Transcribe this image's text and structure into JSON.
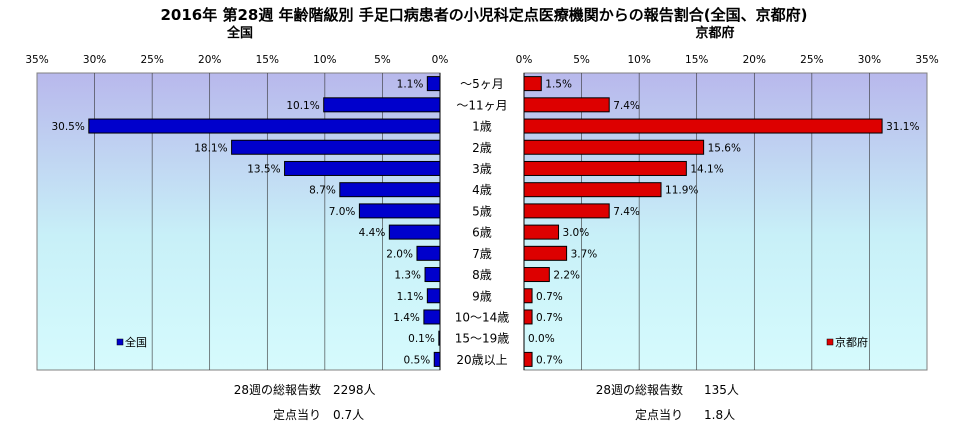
{
  "title": "2016年 第28週 年齢階級別 手足口病患者の小児科定点医療機関からの報告割合(全国、京都府)",
  "chart_data": {
    "type": "bar",
    "orientation": "horizontal-butterfly",
    "categories": [
      "～5ヶ月",
      "～11ヶ月",
      "1歳",
      "2歳",
      "3歳",
      "4歳",
      "5歳",
      "6歳",
      "7歳",
      "8歳",
      "9歳",
      "10～14歳",
      "15～19歳",
      "20歳以上"
    ],
    "xlim": [
      0,
      35
    ],
    "ticks": [
      "0%",
      "5%",
      "10%",
      "15%",
      "20%",
      "25%",
      "30%",
      "35%"
    ],
    "grid": true,
    "series": [
      {
        "name": "全国",
        "panel_title": "全国",
        "color": "#0000cc",
        "direction": "left",
        "values": [
          1.1,
          10.1,
          30.5,
          18.1,
          13.5,
          8.7,
          7.0,
          4.4,
          2.0,
          1.3,
          1.1,
          1.4,
          0.1,
          0.5
        ],
        "labels": [
          "1.1%",
          "10.1%",
          "30.5%",
          "18.1%",
          "13.5%",
          "8.7%",
          "7.0%",
          "4.4%",
          "2.0%",
          "1.3%",
          "1.1%",
          "1.4%",
          "0.1%",
          "0.5%"
        ],
        "legend_position": "bottom-left"
      },
      {
        "name": "京都府",
        "panel_title": "京都府",
        "color": "#dd0000",
        "direction": "right",
        "values": [
          1.5,
          7.4,
          31.1,
          15.6,
          14.1,
          11.9,
          7.4,
          3.0,
          3.7,
          2.2,
          0.7,
          0.7,
          0.0,
          0.7
        ],
        "labels": [
          "1.5%",
          "7.4%",
          "31.1%",
          "15.6%",
          "14.1%",
          "11.9%",
          "7.4%",
          "3.0%",
          "3.7%",
          "2.2%",
          "0.7%",
          "0.7%",
          "0.0%",
          "0.7%"
        ],
        "legend_position": "bottom-right"
      }
    ]
  },
  "footer": {
    "left": [
      {
        "label": "28週の総報告数",
        "value": "2298人"
      },
      {
        "label": "定点当り",
        "value": "0.7人"
      }
    ],
    "right": [
      {
        "label": "28週の総報告数",
        "value": "135人"
      },
      {
        "label": "定点当り",
        "value": "1.8人"
      }
    ]
  }
}
